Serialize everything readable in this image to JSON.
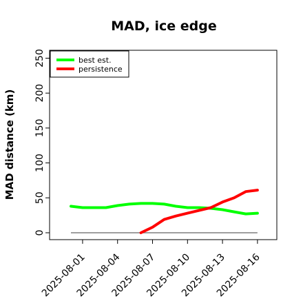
{
  "chart_data": {
    "type": "line",
    "title": "MAD, ice edge",
    "ylabel": "MAD distance (km)",
    "xlabel": "",
    "ylim": [
      0,
      250
    ],
    "yticks": [
      0,
      50,
      100,
      150,
      200,
      250
    ],
    "xtick_labels": [
      "2025-08-01",
      "2025-08-04",
      "2025-08-07",
      "2025-08-10",
      "2025-08-13",
      "2025-08-16"
    ],
    "grid": false,
    "legend": "top-left",
    "reference_line": {
      "y": 0,
      "x_from": "2025-07-31",
      "x_to": "2025-08-16",
      "color": "#7f7f7f"
    },
    "series": [
      {
        "name": "best est.",
        "color": "#00ff00",
        "x": [
          "2025-07-31",
          "2025-08-01",
          "2025-08-02",
          "2025-08-03",
          "2025-08-04",
          "2025-08-05",
          "2025-08-06",
          "2025-08-07",
          "2025-08-08",
          "2025-08-09",
          "2025-08-10",
          "2025-08-11",
          "2025-08-12",
          "2025-08-13",
          "2025-08-14",
          "2025-08-15",
          "2025-08-16"
        ],
        "values": [
          38,
          36,
          36,
          36,
          39,
          41,
          42,
          42,
          41,
          38,
          36,
          36,
          35,
          33,
          30,
          27,
          28
        ]
      },
      {
        "name": "persistence",
        "color": "#ff0000",
        "x": [
          "2025-08-06",
          "2025-08-07",
          "2025-08-08",
          "2025-08-09",
          "2025-08-10",
          "2025-08-11",
          "2025-08-12",
          "2025-08-13",
          "2025-08-14",
          "2025-08-15",
          "2025-08-16"
        ],
        "values": [
          0,
          8,
          19,
          24,
          28,
          32,
          36,
          44,
          50,
          59,
          61
        ]
      }
    ]
  }
}
